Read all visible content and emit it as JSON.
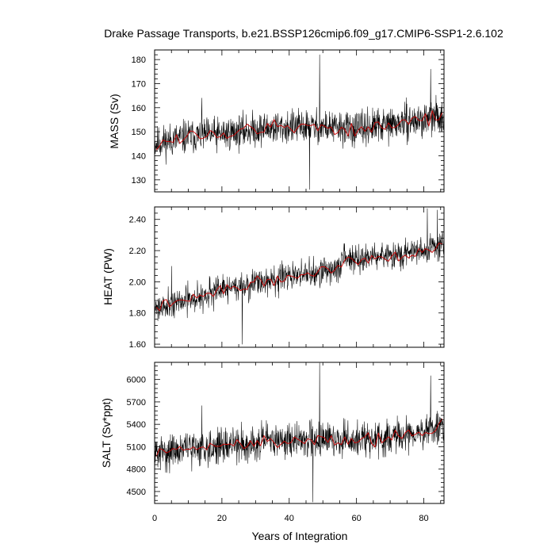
{
  "figure": {
    "title": "Drake Passage Transports, b.e21.BSSP126cmip6.f09_g17.CMIP6-SSP1-2.6.102",
    "xlabel": "Years of Integration",
    "colors": {
      "raw": "#000000",
      "smooth": "#cc0000",
      "frame": "#000000"
    }
  },
  "chart_data": [
    {
      "type": "line",
      "ylabel": "MASS (Sv)",
      "xlim": [
        0,
        86
      ],
      "ylim": [
        125,
        184
      ],
      "xticks": [
        0,
        20,
        40,
        60,
        80
      ],
      "xtick_labels": [
        "0",
        "20",
        "40",
        "60",
        "80"
      ],
      "yticks": [
        130,
        140,
        150,
        160,
        170,
        180
      ],
      "ytick_labels": [
        "130",
        "140",
        "150",
        "160",
        "170",
        "180"
      ],
      "grid": false,
      "series": [
        {
          "role": "monthly",
          "baseline": [
            [
              0,
              145
            ],
            [
              10,
              148
            ],
            [
              20,
              149
            ],
            [
              30,
              151
            ],
            [
              40,
              152
            ],
            [
              50,
              152
            ],
            [
              60,
              151
            ],
            [
              70,
              153
            ],
            [
              80,
              155
            ],
            [
              86,
              157
            ]
          ],
          "noise_amp": 7,
          "spikes": [
            [
              49,
              182
            ],
            [
              46,
              126
            ],
            [
              14,
              164
            ],
            [
              82,
              176
            ]
          ],
          "n": 1032,
          "seed": 11
        },
        {
          "role": "annual-smooth",
          "baseline": [
            [
              0,
              145
            ],
            [
              10,
              148
            ],
            [
              20,
              149
            ],
            [
              30,
              151
            ],
            [
              40,
              152
            ],
            [
              50,
              152
            ],
            [
              60,
              151
            ],
            [
              70,
              153
            ],
            [
              80,
              155
            ],
            [
              86,
              157
            ]
          ],
          "noise_amp": 3.2,
          "n": 86,
          "seed": 12
        }
      ]
    },
    {
      "type": "line",
      "ylabel": "HEAT (PW)",
      "xlim": [
        0,
        86
      ],
      "ylim": [
        1.58,
        2.48
      ],
      "xticks": [
        0,
        20,
        40,
        60,
        80
      ],
      "xtick_labels": [
        "0",
        "20",
        "40",
        "60",
        "80"
      ],
      "yticks": [
        1.6,
        1.8,
        2.0,
        2.2,
        2.4
      ],
      "ytick_labels": [
        "1.60",
        "1.80",
        "2.00",
        "2.20",
        "2.40"
      ],
      "grid": false,
      "series": [
        {
          "role": "monthly",
          "baseline": [
            [
              0,
              1.84
            ],
            [
              10,
              1.88
            ],
            [
              20,
              1.95
            ],
            [
              30,
              1.99
            ],
            [
              40,
              2.03
            ],
            [
              50,
              2.07
            ],
            [
              55,
              2.09
            ],
            [
              56,
              2.15
            ],
            [
              60,
              2.15
            ],
            [
              70,
              2.16
            ],
            [
              80,
              2.2
            ],
            [
              86,
              2.24
            ]
          ],
          "noise_amp": 0.09,
          "spikes": [
            [
              26,
              1.6
            ],
            [
              81,
              2.47
            ],
            [
              84,
              2.46
            ],
            [
              5,
              2.1
            ]
          ],
          "n": 1032,
          "seed": 21
        },
        {
          "role": "annual-smooth",
          "baseline": [
            [
              0,
              1.84
            ],
            [
              10,
              1.88
            ],
            [
              20,
              1.95
            ],
            [
              30,
              1.99
            ],
            [
              40,
              2.03
            ],
            [
              50,
              2.07
            ],
            [
              55,
              2.09
            ],
            [
              56,
              2.15
            ],
            [
              60,
              2.15
            ],
            [
              70,
              2.16
            ],
            [
              80,
              2.2
            ],
            [
              86,
              2.24
            ]
          ],
          "noise_amp": 0.035,
          "n": 86,
          "seed": 22
        }
      ]
    },
    {
      "type": "line",
      "ylabel": "SALT (Sv*ppt)",
      "xlim": [
        0,
        86
      ],
      "ylim": [
        4340,
        6230
      ],
      "xticks": [
        0,
        20,
        40,
        60,
        80
      ],
      "xtick_labels": [
        "0",
        "20",
        "40",
        "60",
        "80"
      ],
      "yticks": [
        4500,
        4800,
        5100,
        5400,
        5700,
        6000
      ],
      "ytick_labels": [
        "4500",
        "4800",
        "5100",
        "5400",
        "5700",
        "6000"
      ],
      "grid": false,
      "series": [
        {
          "role": "monthly",
          "baseline": [
            [
              0,
              5000
            ],
            [
              10,
              5080
            ],
            [
              20,
              5110
            ],
            [
              30,
              5160
            ],
            [
              40,
              5190
            ],
            [
              50,
              5200
            ],
            [
              60,
              5180
            ],
            [
              70,
              5220
            ],
            [
              80,
              5300
            ],
            [
              86,
              5380
            ]
          ],
          "noise_amp": 230,
          "spikes": [
            [
              49,
              6220
            ],
            [
              47,
              4360
            ],
            [
              14,
              5650
            ],
            [
              82,
              6050
            ]
          ],
          "n": 1032,
          "seed": 31
        },
        {
          "role": "annual-smooth",
          "baseline": [
            [
              0,
              5000
            ],
            [
              10,
              5080
            ],
            [
              20,
              5110
            ],
            [
              30,
              5160
            ],
            [
              40,
              5190
            ],
            [
              50,
              5200
            ],
            [
              60,
              5180
            ],
            [
              70,
              5220
            ],
            [
              80,
              5300
            ],
            [
              86,
              5380
            ]
          ],
          "noise_amp": 100,
          "n": 86,
          "seed": 32
        }
      ]
    }
  ]
}
